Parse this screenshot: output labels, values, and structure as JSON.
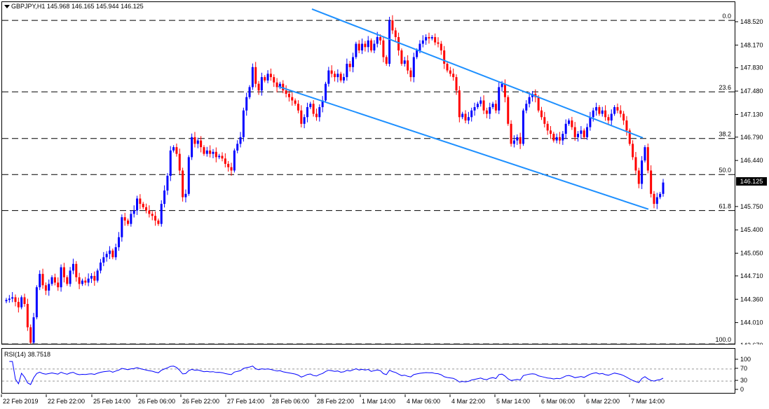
{
  "header": {
    "symbol": "GBPJPY,H1",
    "open": "145.968",
    "high": "146.165",
    "low": "145.944",
    "close": "146.125"
  },
  "current_price": "146.125",
  "colors": {
    "bull": "#0000ff",
    "bear": "#ff0000",
    "channel": "#1e90ff",
    "fib": "#000000",
    "rsi": "#0000ff"
  },
  "price_axis": {
    "ticks": [
      "148.520",
      "148.170",
      "147.830",
      "147.480",
      "147.130",
      "146.790",
      "146.440",
      "145.750",
      "145.400",
      "145.050",
      "144.710",
      "144.360",
      "144.010",
      "143.670"
    ]
  },
  "fib_levels": [
    {
      "label": "0.0",
      "price": 148.55
    },
    {
      "label": "23.6",
      "price": 147.48
    },
    {
      "label": "38.2",
      "price": 146.78
    },
    {
      "label": "50.0",
      "price": 146.24
    },
    {
      "label": "61.8",
      "price": 145.7
    },
    {
      "label": "100.0",
      "price": 143.7
    }
  ],
  "rsi": {
    "title": "RSI(14) 38.7518",
    "levels": [
      "100",
      "70",
      "30",
      "0"
    ]
  },
  "time_axis": {
    "labels": [
      "22 Feb 2019",
      "22 Feb 22:00",
      "25 Feb 14:00",
      "26 Feb 06:00",
      "26 Feb 22:00",
      "27 Feb 14:00",
      "28 Feb 06:00",
      "28 Feb 22:00",
      "1 Mar 14:00",
      "4 Mar 06:00",
      "4 Mar 22:00",
      "5 Mar 14:00",
      "6 Mar 06:00",
      "6 Mar 22:00",
      "7 Mar 14:00"
    ]
  },
  "chart_data": {
    "type": "candlestick",
    "title": "GBPJPY,H1",
    "ylim": [
      143.6,
      148.65
    ],
    "channel": {
      "upper": [
        {
          "x": "28 Feb 20:00",
          "y": 148.72
        },
        {
          "x": "7 Mar 18:00",
          "y": 146.79
        }
      ],
      "lower": [
        {
          "x": "28 Feb 08:00",
          "y": 147.56
        },
        {
          "x": "7 Mar 20:00",
          "y": 145.72
        }
      ]
    },
    "closes": [
      144.36,
      144.38,
      144.4,
      144.33,
      144.25,
      144.4,
      144.3,
      143.95,
      143.72,
      144.1,
      144.55,
      144.75,
      144.58,
      144.5,
      144.6,
      144.7,
      144.62,
      144.55,
      144.85,
      144.7,
      144.6,
      144.8,
      144.9,
      144.7,
      144.6,
      144.65,
      144.62,
      144.68,
      144.72,
      144.65,
      144.8,
      144.92,
      145.0,
      145.05,
      145.1,
      145.0,
      145.15,
      145.3,
      145.6,
      145.55,
      145.5,
      145.65,
      145.7,
      145.88,
      145.8,
      145.75,
      145.7,
      145.65,
      145.62,
      145.55,
      145.5,
      145.8,
      146.0,
      146.22,
      146.6,
      146.65,
      146.55,
      146.3,
      145.9,
      145.95,
      146.5,
      146.8,
      146.7,
      146.75,
      146.65,
      146.55,
      146.6,
      146.55,
      146.58,
      146.5,
      146.52,
      146.48,
      146.4,
      146.35,
      146.3,
      146.6,
      146.7,
      146.8,
      147.2,
      147.4,
      147.55,
      147.85,
      147.6,
      147.5,
      147.7,
      147.65,
      147.75,
      147.7,
      147.62,
      147.55,
      147.6,
      147.5,
      147.45,
      147.4,
      147.35,
      147.3,
      147.2,
      147.0,
      147.1,
      147.25,
      147.3,
      147.15,
      147.1,
      147.25,
      147.35,
      147.6,
      147.8,
      147.75,
      147.7,
      147.75,
      147.65,
      147.7,
      147.9,
      147.85,
      148.0,
      148.2,
      148.1,
      148.2,
      148.15,
      148.25,
      148.1,
      148.2,
      148.3,
      148.25,
      148.0,
      147.9,
      148.55,
      148.4,
      148.3,
      148.1,
      147.9,
      147.95,
      147.8,
      147.7,
      148.0,
      148.1,
      148.2,
      148.25,
      148.3,
      148.28,
      148.3,
      148.22,
      148.2,
      148.1,
      147.9,
      147.8,
      147.75,
      147.7,
      147.5,
      147.1,
      147.15,
      147.05,
      147.1,
      147.2,
      147.25,
      147.3,
      147.35,
      147.2,
      147.15,
      147.25,
      147.3,
      147.2,
      147.55,
      147.6,
      147.4,
      147.0,
      146.7,
      146.75,
      146.8,
      146.7,
      147.2,
      147.3,
      147.4,
      147.45,
      147.4,
      147.2,
      147.1,
      147.0,
      146.9,
      146.85,
      146.75,
      146.8,
      146.75,
      146.85,
      147.0,
      147.05,
      146.95,
      146.8,
      146.85,
      146.9,
      146.8,
      146.95,
      147.1,
      147.2,
      147.25,
      147.15,
      147.2,
      147.1,
      147.05,
      147.15,
      147.25,
      147.2,
      147.15,
      147.05,
      146.9,
      146.7,
      146.5,
      146.3,
      146.1,
      146.45,
      146.65,
      146.3,
      145.95,
      145.8,
      145.9,
      145.95,
      146.12
    ]
  }
}
